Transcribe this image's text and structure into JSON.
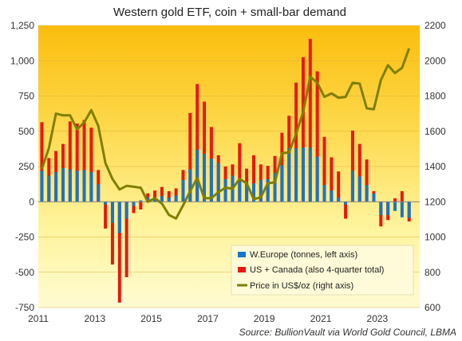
{
  "chart_data": {
    "type": "bar",
    "title": "Western gold ETF, coin + small-bar demand",
    "source": "Source:  BullionVault  via World Gold Council, LBMA",
    "y_left": {
      "range": [
        -750,
        1250
      ],
      "ticks": [
        -750,
        -500,
        -250,
        0,
        250,
        500,
        750,
        1000,
        1250
      ],
      "tick_labels": [
        "-750",
        "-500",
        "-250",
        "0",
        "250",
        "500",
        "750",
        "1,000",
        "1,250"
      ]
    },
    "y_right": {
      "range": [
        600,
        2200
      ],
      "ticks": [
        600,
        800,
        1000,
        1200,
        1400,
        1600,
        1800,
        2000,
        2200
      ],
      "tick_labels": [
        "600",
        "800",
        "1000",
        "1200",
        "1400",
        "1600",
        "1800",
        "2000",
        "2200"
      ]
    },
    "x_axis": {
      "range": [
        2011,
        2024.5
      ],
      "ticks": [
        2011,
        2013,
        2015,
        2017,
        2019,
        2021,
        2023
      ],
      "tick_labels": [
        "2011",
        "2013",
        "2015",
        "2017",
        "2019",
        "2021",
        "2023"
      ]
    },
    "quarters": [
      "Q1 2011",
      "Q2 2011",
      "Q3 2011",
      "Q4 2011",
      "Q1 2012",
      "Q2 2012",
      "Q3 2012",
      "Q4 2012",
      "Q1 2013",
      "Q2 2013",
      "Q3 2013",
      "Q4 2013",
      "Q1 2014",
      "Q2 2014",
      "Q3 2014",
      "Q4 2014",
      "Q1 2015",
      "Q2 2015",
      "Q3 2015",
      "Q4 2015",
      "Q1 2016",
      "Q2 2016",
      "Q3 2016",
      "Q4 2016",
      "Q1 2017",
      "Q2 2017",
      "Q3 2017",
      "Q4 2017",
      "Q1 2018",
      "Q2 2018",
      "Q3 2018",
      "Q4 2018",
      "Q1 2019",
      "Q2 2019",
      "Q3 2019",
      "Q4 2019",
      "Q1 2020",
      "Q2 2020",
      "Q3 2020",
      "Q4 2020",
      "Q1 2021",
      "Q2 2021",
      "Q3 2021",
      "Q4 2021",
      "Q1 2022",
      "Q2 2022",
      "Q3 2022",
      "Q4 2022",
      "Q1 2023",
      "Q2 2023",
      "Q3 2023",
      "Q4 2023",
      "Q1 2024"
    ],
    "series": [
      {
        "name": "W.Europe (tonnes, left axis)",
        "color": "#1a73c8",
        "values": [
          220,
          185,
          210,
          240,
          230,
          220,
          225,
          210,
          125,
          -20,
          -150,
          -220,
          -120,
          -30,
          10,
          30,
          30,
          40,
          30,
          45,
          155,
          230,
          370,
          340,
          305,
          275,
          160,
          185,
          145,
          140,
          130,
          155,
          160,
          205,
          260,
          380,
          380,
          385,
          385,
          320,
          120,
          80,
          30,
          -20,
          220,
          180,
          120,
          60,
          -95,
          -95,
          -65,
          -110,
          -115
        ]
      },
      {
        "name": "US + Canada (also 4-quarter total)",
        "color": "#e8180f",
        "values": [
          565,
          310,
          360,
          410,
          570,
          555,
          580,
          525,
          225,
          -190,
          -445,
          -715,
          -535,
          -80,
          -55,
          60,
          80,
          105,
          75,
          95,
          225,
          630,
          835,
          710,
          530,
          330,
          250,
          265,
          415,
          235,
          330,
          265,
          255,
          325,
          490,
          610,
          845,
          1025,
          1155,
          925,
          460,
          315,
          215,
          -120,
          505,
          410,
          300,
          75,
          -175,
          -130,
          25,
          75,
          -140
        ]
      },
      {
        "name": "Price in US$/oz (right axis)",
        "color": "#7f7f00",
        "values": [
          1385,
          1505,
          1700,
          1690,
          1690,
          1610,
          1650,
          1720,
          1630,
          1420,
          1330,
          1270,
          1290,
          1285,
          1280,
          1200,
          1220,
          1190,
          1125,
          1105,
          1180,
          1260,
          1335,
          1220,
          1220,
          1255,
          1280,
          1275,
          1330,
          1305,
          1215,
          1225,
          1305,
          1310,
          1475,
          1480,
          1585,
          1710,
          1910,
          1875,
          1795,
          1815,
          1790,
          1795,
          1875,
          1870,
          1730,
          1725,
          1890,
          1975,
          1930,
          1960,
          2070
        ]
      }
    ],
    "legend_position": "bottom-right",
    "grid": "horizontal",
    "background": "yellow gradient"
  }
}
